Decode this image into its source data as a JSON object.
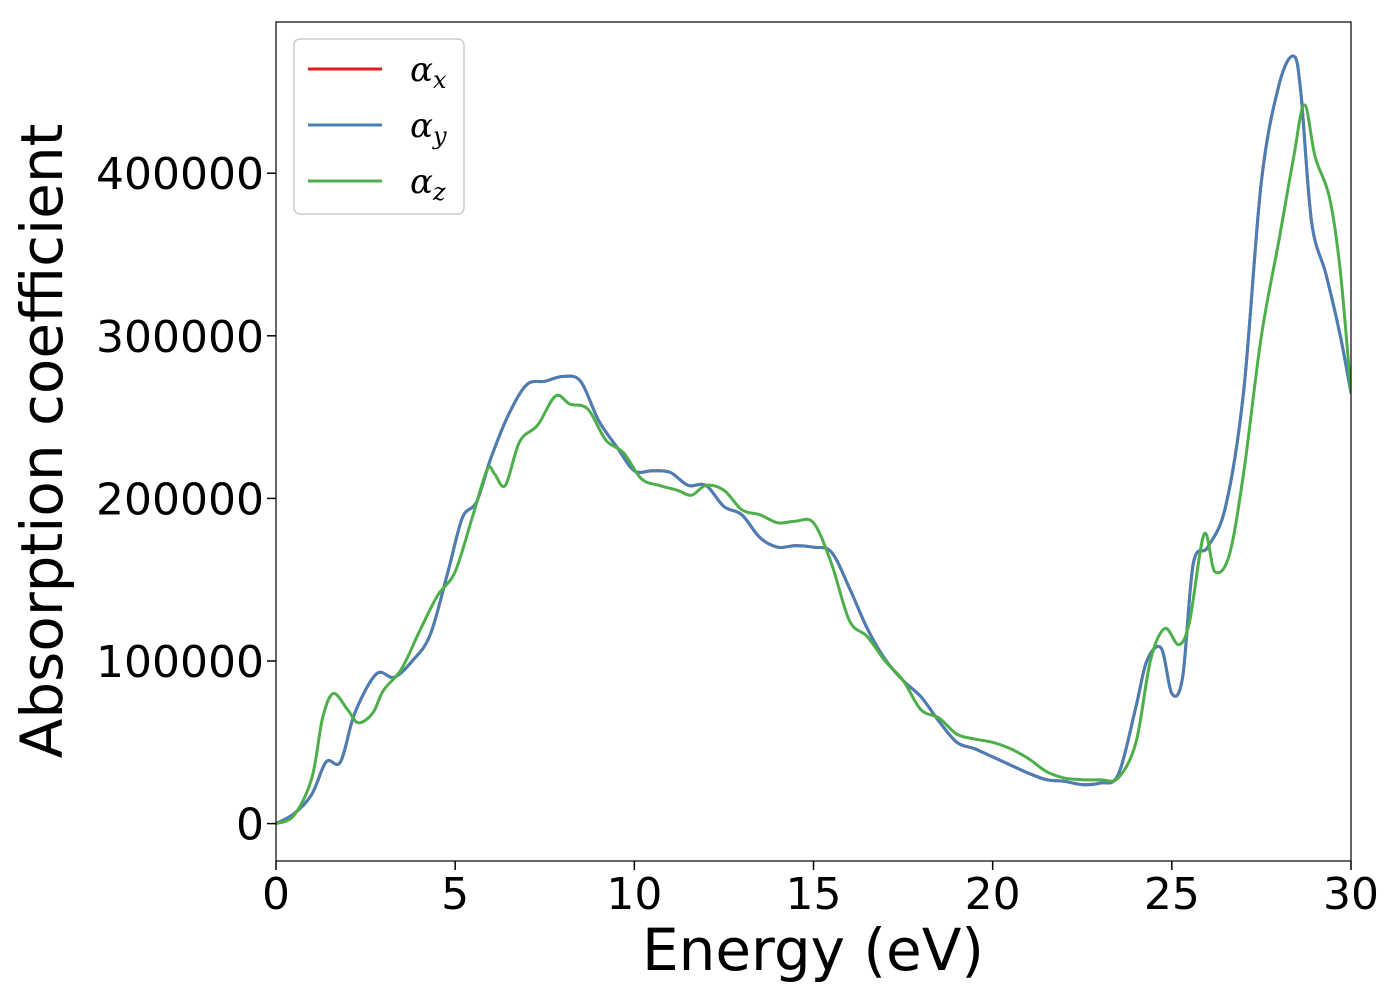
{
  "chart_data": {
    "type": "line",
    "xlabel": "Energy (eV)",
    "ylabel": "Absorption coefficient",
    "xlim": [
      0,
      30
    ],
    "ylim": [
      -23000,
      493000
    ],
    "xticks": [
      0,
      5,
      10,
      15,
      20,
      25,
      30
    ],
    "yticks": [
      0,
      100000,
      200000,
      300000,
      400000
    ],
    "grid": false,
    "legend_position": "top-left",
    "series": [
      {
        "name": "αx",
        "symbol": "α",
        "subscript": "x",
        "color": "#e41a1c",
        "x": [
          0,
          0.5,
          1,
          1.4,
          1.8,
          2.2,
          2.8,
          3.3,
          3.8,
          4.3,
          4.8,
          5.2,
          5.6,
          6.0,
          6.5,
          7.0,
          7.5,
          8.0,
          8.5,
          9.0,
          9.5,
          10.0,
          10.5,
          11.0,
          11.5,
          12.0,
          12.5,
          13.0,
          13.5,
          14.0,
          14.5,
          15.0,
          15.5,
          16.0,
          16.5,
          17.0,
          17.5,
          18.0,
          18.5,
          19.0,
          19.5,
          20.0,
          20.5,
          21.0,
          21.5,
          22.0,
          22.5,
          23.0,
          23.5,
          24.0,
          24.3,
          24.7,
          25.0,
          25.3,
          25.6,
          26.0,
          26.5,
          27.0,
          27.5,
          28.0,
          28.4,
          28.6,
          28.9,
          29.3,
          29.7,
          30.0
        ],
        "values": [
          0,
          6000,
          18000,
          38000,
          38000,
          68000,
          92000,
          90000,
          100000,
          116000,
          155000,
          188000,
          198000,
          225000,
          252000,
          270000,
          272000,
          275000,
          272000,
          248000,
          232000,
          217000,
          217000,
          216000,
          208000,
          208000,
          195000,
          190000,
          176000,
          170000,
          171000,
          170000,
          167000,
          145000,
          120000,
          101000,
          88000,
          78000,
          63000,
          50000,
          46000,
          41000,
          36000,
          31000,
          27000,
          26000,
          24000,
          25000,
          30000,
          72000,
          100000,
          108000,
          80000,
          90000,
          160000,
          170000,
          195000,
          265000,
          395000,
          455000,
          472000,
          450000,
          370000,
          338000,
          300000,
          265000
        ]
      },
      {
        "name": "αy",
        "symbol": "α",
        "subscript": "y",
        "color": "#4a7fb5",
        "x": [
          0,
          0.5,
          1,
          1.4,
          1.8,
          2.2,
          2.8,
          3.3,
          3.8,
          4.3,
          4.8,
          5.2,
          5.6,
          6.0,
          6.5,
          7.0,
          7.5,
          8.0,
          8.5,
          9.0,
          9.5,
          10.0,
          10.5,
          11.0,
          11.5,
          12.0,
          12.5,
          13.0,
          13.5,
          14.0,
          14.5,
          15.0,
          15.5,
          16.0,
          16.5,
          17.0,
          17.5,
          18.0,
          18.5,
          19.0,
          19.5,
          20.0,
          20.5,
          21.0,
          21.5,
          22.0,
          22.5,
          23.0,
          23.5,
          24.0,
          24.3,
          24.7,
          25.0,
          25.3,
          25.6,
          26.0,
          26.5,
          27.0,
          27.5,
          28.0,
          28.4,
          28.6,
          28.9,
          29.3,
          29.7,
          30.0
        ],
        "values": [
          0,
          6000,
          18000,
          38000,
          38000,
          68000,
          92000,
          90000,
          100000,
          116000,
          155000,
          188000,
          198000,
          225000,
          252000,
          270000,
          272000,
          275000,
          272000,
          248000,
          232000,
          217000,
          217000,
          216000,
          208000,
          208000,
          195000,
          190000,
          176000,
          170000,
          171000,
          170000,
          167000,
          145000,
          120000,
          101000,
          88000,
          78000,
          63000,
          50000,
          46000,
          41000,
          36000,
          31000,
          27000,
          26000,
          24000,
          25000,
          30000,
          72000,
          100000,
          108000,
          80000,
          90000,
          160000,
          170000,
          195000,
          265000,
          395000,
          455000,
          472000,
          450000,
          370000,
          338000,
          300000,
          265000
        ]
      },
      {
        "name": "αz",
        "symbol": "α",
        "subscript": "z",
        "color": "#4daf4a",
        "x": [
          0,
          0.5,
          1,
          1.3,
          1.6,
          2.0,
          2.3,
          2.7,
          3.0,
          3.5,
          4.0,
          4.5,
          5.0,
          5.5,
          5.9,
          6.1,
          6.4,
          6.8,
          7.3,
          7.8,
          8.2,
          8.7,
          9.2,
          9.7,
          10.2,
          10.7,
          11.2,
          11.6,
          12.0,
          12.5,
          13.0,
          13.5,
          14.0,
          14.5,
          15.0,
          15.5,
          16.0,
          16.5,
          17.0,
          17.5,
          18.0,
          18.5,
          19.0,
          19.5,
          20.0,
          20.5,
          21.0,
          21.5,
          22.0,
          22.5,
          23.0,
          23.5,
          24.0,
          24.4,
          24.8,
          25.2,
          25.5,
          25.9,
          26.2,
          26.6,
          27.0,
          27.5,
          28.0,
          28.4,
          28.7,
          29.0,
          29.4,
          29.7,
          30.0
        ],
        "values": [
          0,
          5000,
          28000,
          65000,
          80000,
          70000,
          62000,
          68000,
          82000,
          95000,
          118000,
          140000,
          155000,
          190000,
          218000,
          215000,
          208000,
          235000,
          245000,
          263000,
          258000,
          255000,
          236000,
          228000,
          212000,
          208000,
          205000,
          202000,
          208000,
          205000,
          193000,
          190000,
          185000,
          186000,
          185000,
          160000,
          125000,
          115000,
          100000,
          88000,
          70000,
          65000,
          55000,
          52000,
          50000,
          46000,
          40000,
          32000,
          28000,
          27000,
          27000,
          28000,
          50000,
          100000,
          120000,
          110000,
          125000,
          178000,
          155000,
          165000,
          215000,
          300000,
          360000,
          410000,
          442000,
          410000,
          385000,
          340000,
          265000
        ]
      }
    ]
  }
}
